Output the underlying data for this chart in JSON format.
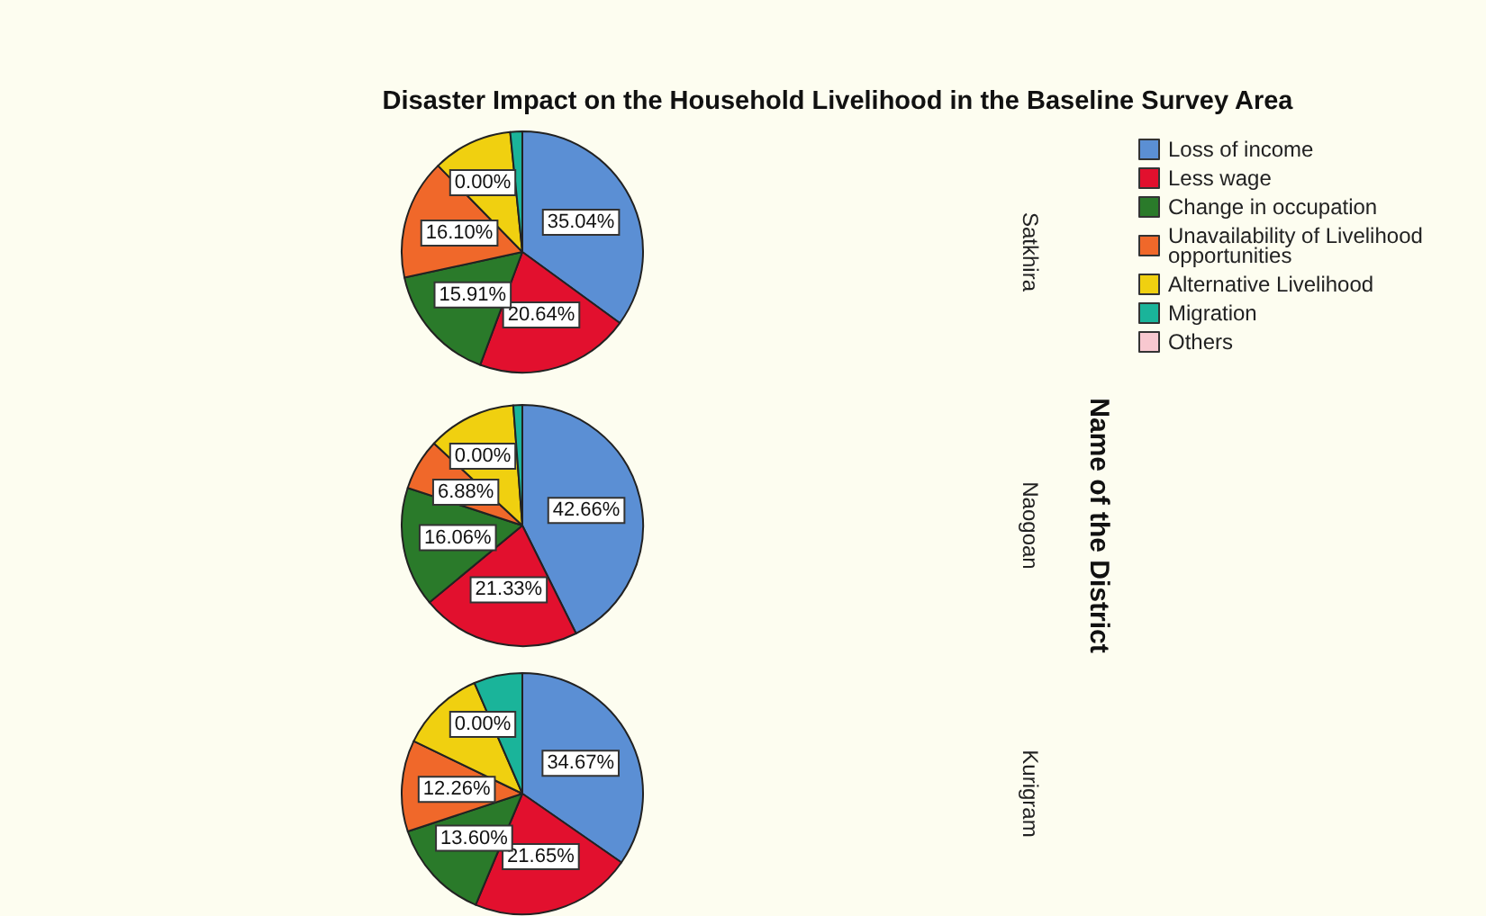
{
  "chart_data": {
    "type": "pie",
    "title": "Disaster Impact on the Household Livelihood in the Baseline Survey Area",
    "ylabel": "Name of the District",
    "legend": "right",
    "categories": [
      "Loss of income",
      "Less wage",
      "Change in occupation",
      "Unavailability of Livelihood\nopportunities",
      "Alternative Livelihood",
      "Migration",
      "Others"
    ],
    "colors": [
      "#5b8fd4",
      "#e2102e",
      "#2a7a2a",
      "#f0682a",
      "#f0d010",
      "#1ab49a",
      "#f8c8d0"
    ],
    "series": [
      {
        "name": "Satkhira",
        "values": [
          35.04,
          20.64,
          15.91,
          16.1,
          10.7,
          1.61,
          0.0
        ],
        "value_labels": [
          "35.04%",
          "20.64%",
          "15.91%",
          "16.10%",
          null,
          null,
          "0.00%"
        ]
      },
      {
        "name": "Naogoan",
        "values": [
          42.66,
          21.33,
          16.06,
          6.88,
          11.87,
          1.2,
          0.0
        ],
        "value_labels": [
          "42.66%",
          "21.33%",
          "16.06%",
          "6.88%",
          null,
          null,
          "0.00%"
        ]
      },
      {
        "name": "Kurigram",
        "values": [
          34.67,
          21.65,
          13.6,
          12.26,
          11.32,
          6.5,
          0.0
        ],
        "value_labels": [
          "34.67%",
          "21.65%",
          "13.60%",
          "12.26%",
          null,
          null,
          "0.00%"
        ]
      }
    ]
  }
}
